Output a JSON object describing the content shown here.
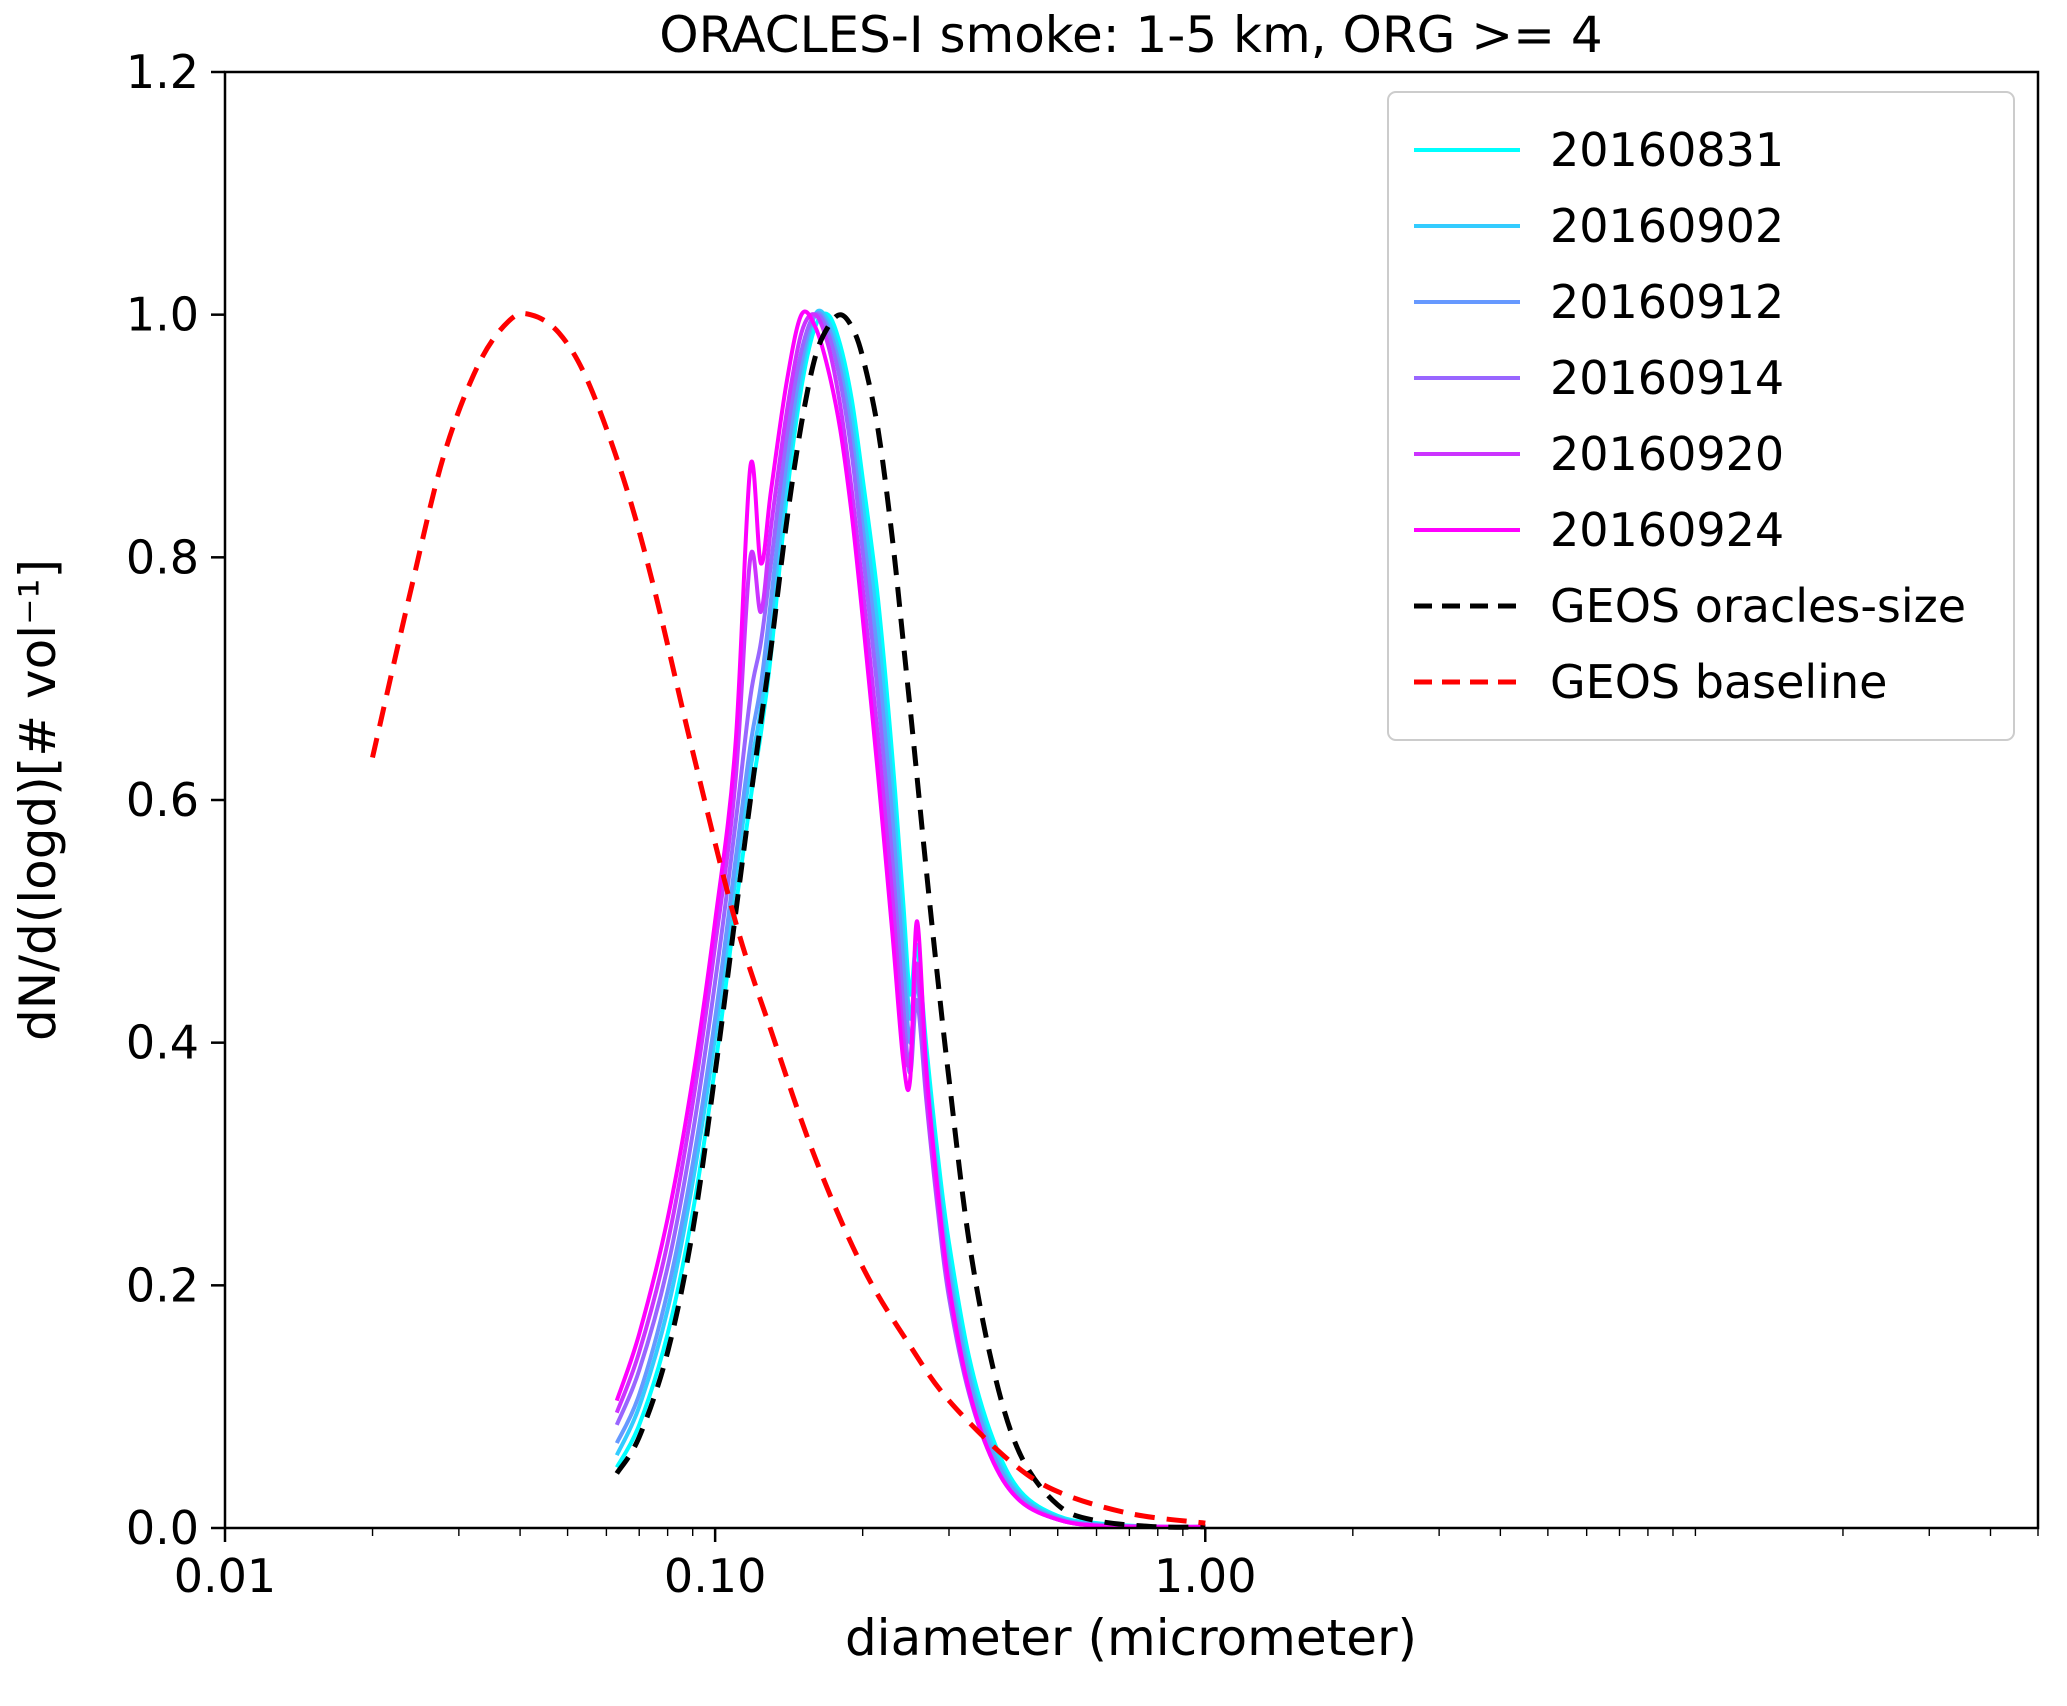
{
  "chart_data": {
    "type": "line",
    "title": "ORACLES-I smoke: 1-5 km, ORG >= 4",
    "xlabel": "diameter (micrometer)",
    "ylabel": "dN/d(logd)[# vol⁻¹]",
    "x_scale": "log",
    "y_scale": "linear",
    "xlim": [
      0.01,
      50
    ],
    "ylim": [
      0.0,
      1.2
    ],
    "grid": false,
    "legend_position": "upper right",
    "x_ticks": [
      {
        "value": 0.01,
        "label": "0.01"
      },
      {
        "value": 0.1,
        "label": "0.10"
      },
      {
        "value": 1.0,
        "label": "1.00"
      }
    ],
    "y_ticks": [
      {
        "value": 0.0,
        "label": "0.0"
      },
      {
        "value": 0.2,
        "label": "0.2"
      },
      {
        "value": 0.4,
        "label": "0.4"
      },
      {
        "value": 0.6,
        "label": "0.6"
      },
      {
        "value": 0.8,
        "label": "0.8"
      },
      {
        "value": 1.0,
        "label": "1.0"
      },
      {
        "value": 1.2,
        "label": "1.2"
      }
    ],
    "series": [
      {
        "name": "20160831",
        "color": "#00FFFF",
        "line_style": "solid",
        "x": [
          0.063,
          0.07,
          0.08,
          0.09,
          0.1,
          0.11,
          0.118,
          0.124,
          0.13,
          0.14,
          0.15,
          0.16,
          0.17,
          0.18,
          0.19,
          0.2,
          0.215,
          0.23,
          0.242,
          0.25,
          0.258,
          0.27,
          0.285,
          0.3,
          0.33,
          0.37,
          0.42,
          0.5,
          0.6,
          0.8,
          1.0
        ],
        "y": [
          0.05,
          0.085,
          0.16,
          0.26,
          0.38,
          0.51,
          0.6,
          0.655,
          0.72,
          0.85,
          0.94,
          0.99,
          1.0,
          0.975,
          0.93,
          0.865,
          0.765,
          0.635,
          0.515,
          0.44,
          0.48,
          0.395,
          0.305,
          0.235,
          0.14,
          0.072,
          0.03,
          0.01,
          0.004,
          0.001,
          0.001
        ]
      },
      {
        "name": "20160902",
        "color": "#33CCFF",
        "line_style": "solid",
        "x": [
          0.063,
          0.07,
          0.08,
          0.09,
          0.1,
          0.11,
          0.118,
          0.124,
          0.13,
          0.14,
          0.15,
          0.16,
          0.17,
          0.18,
          0.19,
          0.2,
          0.215,
          0.23,
          0.242,
          0.25,
          0.258,
          0.27,
          0.285,
          0.3,
          0.33,
          0.37,
          0.42,
          0.5,
          0.6,
          0.8,
          1.0
        ],
        "y": [
          0.06,
          0.1,
          0.18,
          0.285,
          0.405,
          0.535,
          0.625,
          0.675,
          0.745,
          0.865,
          0.95,
          1.0,
          0.995,
          0.965,
          0.915,
          0.845,
          0.74,
          0.61,
          0.49,
          0.42,
          0.46,
          0.38,
          0.29,
          0.22,
          0.13,
          0.065,
          0.027,
          0.009,
          0.003,
          0.001,
          0.001
        ]
      },
      {
        "name": "20160912",
        "color": "#6699FF",
        "line_style": "solid",
        "x": [
          0.063,
          0.07,
          0.08,
          0.09,
          0.1,
          0.11,
          0.118,
          0.124,
          0.13,
          0.14,
          0.15,
          0.16,
          0.17,
          0.18,
          0.19,
          0.2,
          0.215,
          0.23,
          0.242,
          0.25,
          0.258,
          0.27,
          0.285,
          0.3,
          0.33,
          0.37,
          0.42,
          0.5,
          0.6,
          0.8,
          1.0
        ],
        "y": [
          0.07,
          0.11,
          0.195,
          0.3,
          0.42,
          0.55,
          0.645,
          0.695,
          0.765,
          0.88,
          0.96,
          1.0,
          0.99,
          0.955,
          0.9,
          0.825,
          0.715,
          0.585,
          0.465,
          0.4,
          0.45,
          0.37,
          0.28,
          0.21,
          0.123,
          0.06,
          0.025,
          0.008,
          0.003,
          0.001,
          0.001
        ]
      },
      {
        "name": "20160914",
        "color": "#9966FF",
        "line_style": "solid",
        "x": [
          0.063,
          0.07,
          0.08,
          0.09,
          0.1,
          0.11,
          0.118,
          0.124,
          0.13,
          0.14,
          0.15,
          0.16,
          0.17,
          0.18,
          0.19,
          0.2,
          0.215,
          0.23,
          0.242,
          0.25,
          0.258,
          0.27,
          0.285,
          0.3,
          0.33,
          0.37,
          0.42,
          0.5,
          0.6,
          0.8,
          1.0
        ],
        "y": [
          0.085,
          0.13,
          0.215,
          0.325,
          0.45,
          0.58,
          0.685,
          0.73,
          0.795,
          0.9,
          0.97,
          1.0,
          0.985,
          0.945,
          0.885,
          0.805,
          0.685,
          0.55,
          0.43,
          0.375,
          0.435,
          0.35,
          0.26,
          0.19,
          0.11,
          0.054,
          0.022,
          0.007,
          0.002,
          0.001,
          0.001
        ]
      },
      {
        "name": "20160920",
        "color": "#CC33FF",
        "line_style": "solid",
        "x": [
          0.063,
          0.07,
          0.08,
          0.09,
          0.1,
          0.11,
          0.118,
          0.124,
          0.13,
          0.14,
          0.15,
          0.16,
          0.17,
          0.18,
          0.19,
          0.2,
          0.215,
          0.23,
          0.242,
          0.25,
          0.258,
          0.27,
          0.285,
          0.3,
          0.33,
          0.37,
          0.42,
          0.5,
          0.6,
          0.8,
          1.0
        ],
        "y": [
          0.095,
          0.145,
          0.235,
          0.35,
          0.48,
          0.615,
          0.8,
          0.755,
          0.825,
          0.92,
          0.985,
          1.0,
          0.975,
          0.925,
          0.855,
          0.775,
          0.65,
          0.52,
          0.405,
          0.385,
          0.465,
          0.355,
          0.265,
          0.195,
          0.112,
          0.054,
          0.022,
          0.007,
          0.002,
          0.001,
          0.001
        ]
      },
      {
        "name": "20160924",
        "color": "#FF00FF",
        "line_style": "solid",
        "x": [
          0.063,
          0.07,
          0.08,
          0.09,
          0.1,
          0.11,
          0.118,
          0.124,
          0.13,
          0.14,
          0.15,
          0.16,
          0.17,
          0.18,
          0.19,
          0.2,
          0.215,
          0.23,
          0.242,
          0.25,
          0.258,
          0.27,
          0.285,
          0.3,
          0.33,
          0.37,
          0.42,
          0.5,
          0.6,
          0.8,
          1.0
        ],
        "y": [
          0.105,
          0.16,
          0.255,
          0.37,
          0.5,
          0.645,
          0.875,
          0.795,
          0.855,
          0.945,
          1.0,
          0.99,
          0.955,
          0.905,
          0.835,
          0.75,
          0.62,
          0.49,
          0.385,
          0.37,
          0.5,
          0.375,
          0.275,
          0.2,
          0.113,
          0.054,
          0.022,
          0.007,
          0.002,
          0.001,
          0.001
        ]
      },
      {
        "name": "GEOS oracles-size",
        "color": "#000000",
        "line_style": "dashed",
        "x": [
          0.063,
          0.07,
          0.08,
          0.09,
          0.1,
          0.11,
          0.118,
          0.124,
          0.13,
          0.14,
          0.15,
          0.16,
          0.17,
          0.18,
          0.19,
          0.2,
          0.215,
          0.23,
          0.242,
          0.25,
          0.258,
          0.27,
          0.285,
          0.3,
          0.33,
          0.37,
          0.42,
          0.5,
          0.6,
          0.8,
          1.0
        ],
        "y": [
          0.045,
          0.075,
          0.145,
          0.245,
          0.375,
          0.505,
          0.6,
          0.665,
          0.725,
          0.83,
          0.91,
          0.965,
          0.99,
          1.0,
          0.99,
          0.965,
          0.905,
          0.815,
          0.73,
          0.675,
          0.62,
          0.54,
          0.45,
          0.37,
          0.235,
          0.13,
          0.06,
          0.019,
          0.006,
          0.001,
          0.001
        ]
      },
      {
        "name": "GEOS baseline",
        "color": "#FF0000",
        "line_style": "dashed",
        "x": [
          0.02,
          0.024,
          0.028,
          0.033,
          0.038,
          0.042,
          0.048,
          0.055,
          0.065,
          0.075,
          0.09,
          0.11,
          0.13,
          0.16,
          0.2,
          0.25,
          0.3,
          0.4,
          0.5,
          0.7,
          1.0
        ],
        "y": [
          0.635,
          0.775,
          0.885,
          0.96,
          0.995,
          1.0,
          0.985,
          0.945,
          0.865,
          0.775,
          0.64,
          0.5,
          0.41,
          0.305,
          0.215,
          0.15,
          0.105,
          0.055,
          0.03,
          0.012,
          0.004
        ]
      }
    ]
  }
}
